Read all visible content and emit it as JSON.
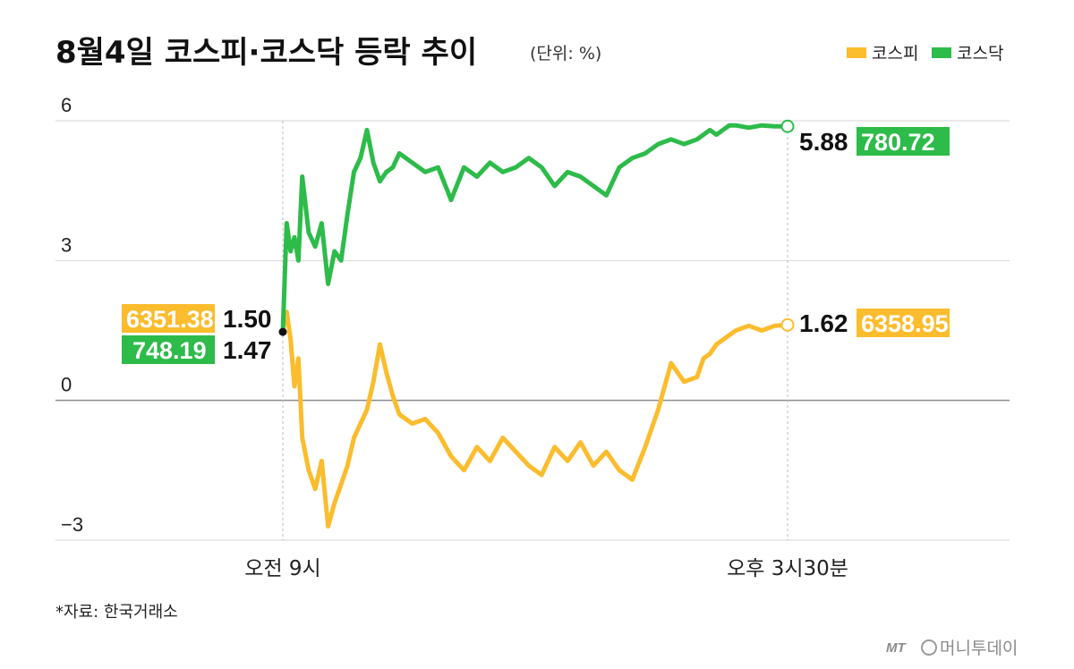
{
  "title": "8월4일 코스피·코스닥 등락 추이",
  "unit": "(단위: %)",
  "source": "*자료: 한국거래소",
  "logo": {
    "mark": "MT",
    "text": "머니투데이"
  },
  "colors": {
    "kospi": "#fbbc2d",
    "kosdaq": "#2dbb4a",
    "grid": "#d4d4d4",
    "zero": "#8c8c8c"
  },
  "chart_data": {
    "type": "line",
    "title": "8월4일 코스피·코스닥 등락 추이",
    "ylabel": "(단위: %)",
    "ylim": [
      -3,
      6
    ],
    "yticks": [
      6,
      3,
      0,
      -3
    ],
    "ytick_labels": [
      "6",
      "3",
      "0",
      "−3"
    ],
    "x_range": [
      "09:00",
      "15:30"
    ],
    "xticks": [
      "오전 9시",
      "오후 3시30분"
    ],
    "grid": true,
    "legend": "top-right",
    "series": [
      {
        "name": "코스피",
        "color": "#fbbc2d",
        "start": {
          "pct": "1.50",
          "index": "6351.38"
        },
        "end": {
          "pct": "1.62",
          "index": "6358.95"
        },
        "x": [
          "09:00",
          "09:03",
          "09:06",
          "09:09",
          "09:12",
          "09:15",
          "09:20",
          "09:25",
          "09:30",
          "09:35",
          "09:40",
          "09:45",
          "09:50",
          "09:55",
          "10:00",
          "10:05",
          "10:10",
          "10:15",
          "10:20",
          "10:25",
          "10:30",
          "10:40",
          "10:50",
          "11:00",
          "11:10",
          "11:20",
          "11:30",
          "11:40",
          "11:50",
          "12:00",
          "12:10",
          "12:20",
          "12:30",
          "12:40",
          "12:50",
          "13:00",
          "13:10",
          "13:20",
          "13:30",
          "13:40",
          "13:50",
          "14:00",
          "14:10",
          "14:20",
          "14:25",
          "14:30",
          "14:35",
          "14:40",
          "14:45",
          "14:50",
          "15:00",
          "15:10",
          "15:20",
          "15:30"
        ],
        "y": [
          1.5,
          1.9,
          1.3,
          0.3,
          0.9,
          -0.8,
          -1.5,
          -1.9,
          -1.3,
          -2.7,
          -2.2,
          -1.8,
          -1.4,
          -0.8,
          -0.5,
          -0.2,
          0.4,
          1.2,
          0.6,
          0.1,
          -0.3,
          -0.5,
          -0.4,
          -0.7,
          -1.2,
          -1.5,
          -1.0,
          -1.3,
          -0.8,
          -1.1,
          -1.4,
          -1.6,
          -1.0,
          -1.3,
          -0.9,
          -1.4,
          -1.1,
          -1.5,
          -1.7,
          -1.0,
          -0.2,
          0.8,
          0.4,
          0.5,
          0.9,
          1.0,
          1.2,
          1.3,
          1.4,
          1.5,
          1.6,
          1.5,
          1.6,
          1.62
        ]
      },
      {
        "name": "코스닥",
        "color": "#2dbb4a",
        "start": {
          "pct": "1.47",
          "index": "748.19"
        },
        "end": {
          "pct": "5.88",
          "index": "780.72"
        },
        "x": [
          "09:00",
          "09:03",
          "09:06",
          "09:09",
          "09:12",
          "09:15",
          "09:20",
          "09:25",
          "09:30",
          "09:35",
          "09:40",
          "09:45",
          "09:50",
          "09:55",
          "10:00",
          "10:05",
          "10:10",
          "10:15",
          "10:20",
          "10:25",
          "10:30",
          "10:40",
          "10:50",
          "11:00",
          "11:10",
          "11:20",
          "11:30",
          "11:40",
          "11:50",
          "12:00",
          "12:10",
          "12:20",
          "12:30",
          "12:40",
          "12:50",
          "13:00",
          "13:10",
          "13:20",
          "13:30",
          "13:40",
          "13:50",
          "14:00",
          "14:10",
          "14:20",
          "14:25",
          "14:30",
          "14:35",
          "14:40",
          "14:45",
          "14:50",
          "15:00",
          "15:10",
          "15:20",
          "15:30"
        ],
        "y": [
          1.47,
          3.8,
          3.2,
          3.5,
          3.0,
          4.8,
          3.6,
          3.3,
          3.8,
          2.5,
          3.2,
          3.0,
          4.0,
          4.9,
          5.2,
          5.8,
          5.1,
          4.7,
          4.9,
          5.0,
          5.3,
          5.1,
          4.9,
          5.0,
          4.3,
          5.0,
          4.8,
          5.1,
          4.9,
          5.0,
          5.2,
          5.0,
          4.6,
          4.9,
          4.8,
          4.6,
          4.4,
          5.0,
          5.2,
          5.3,
          5.5,
          5.6,
          5.5,
          5.6,
          5.7,
          5.8,
          5.7,
          5.8,
          5.9,
          5.9,
          5.85,
          5.9,
          5.88,
          5.88
        ]
      }
    ]
  }
}
